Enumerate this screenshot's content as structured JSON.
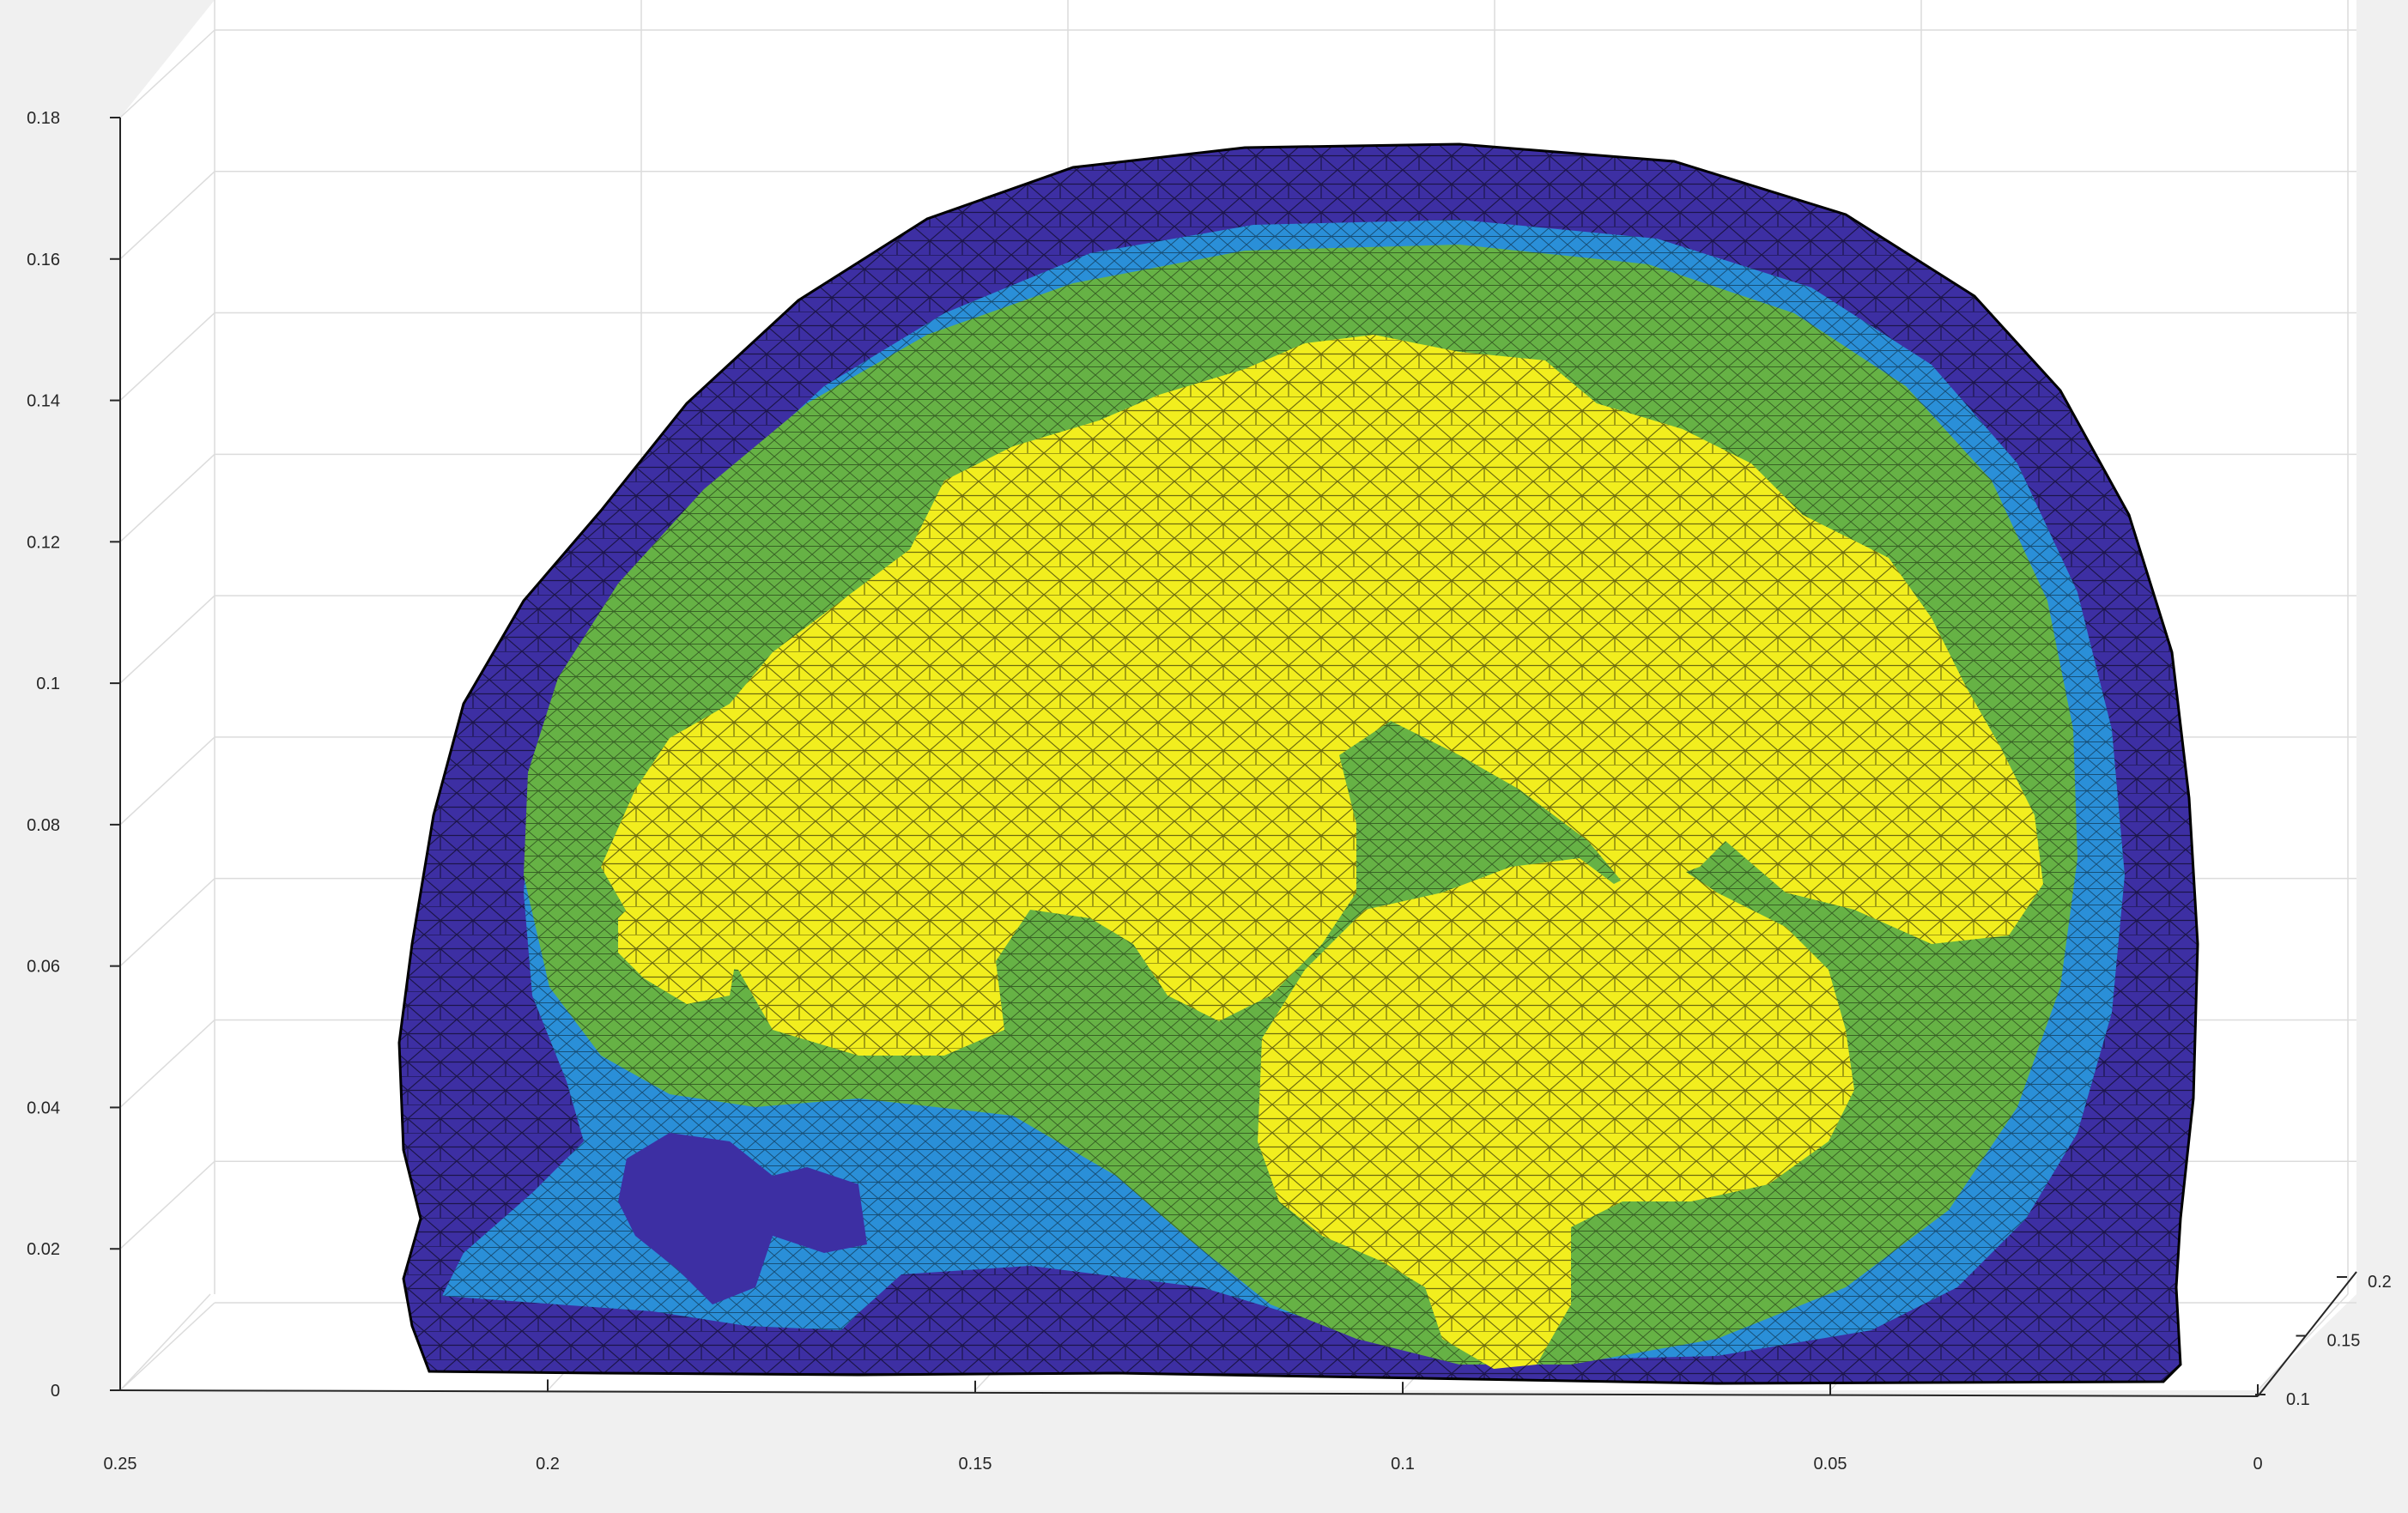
{
  "chart_data": {
    "type": "surface-mesh-3d",
    "view": "isometric-like side view of a sagittal slice",
    "title": "",
    "xlabel": "",
    "ylabel": "",
    "zlabel": "",
    "x_axis": {
      "range": [
        0,
        0.25
      ],
      "direction": "decreasing left-to-right",
      "ticks": [
        0.25,
        0.2,
        0.15,
        0.1,
        0.05,
        0
      ],
      "tick_labels": [
        "0.25",
        "0.2",
        "0.15",
        "0.1",
        "0.05",
        "0"
      ]
    },
    "y_axis": {
      "range": [
        0.1,
        0.2
      ],
      "ticks": [
        0.1,
        0.15,
        0.2
      ],
      "tick_labels": [
        "0.1",
        "0.15",
        "0.2"
      ]
    },
    "z_axis": {
      "range": [
        0,
        0.18
      ],
      "ticks": [
        0,
        0.02,
        0.04,
        0.06,
        0.08,
        0.1,
        0.12,
        0.14,
        0.16,
        0.18
      ],
      "tick_labels": [
        "0",
        "0.02",
        "0.04",
        "0.06",
        "0.08",
        "0.1",
        "0.12",
        "0.14",
        "0.16",
        "0.18"
      ]
    },
    "grid": true,
    "regions": [
      {
        "id": "outer",
        "color": "#3d2fa3"
      },
      {
        "id": "middle",
        "color": "#2a8fd8"
      },
      {
        "id": "inner",
        "color": "#66b245"
      },
      {
        "id": "core",
        "color": "#f2ee1e"
      }
    ],
    "mesh_edge_color": "#000000"
  }
}
